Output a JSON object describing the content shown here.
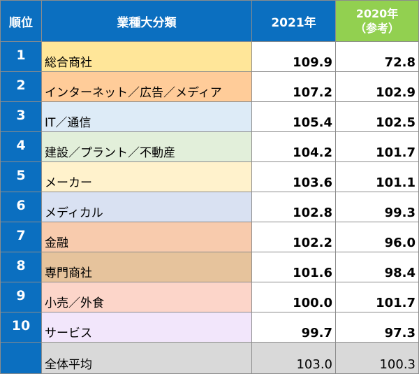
{
  "header": {
    "rank": "順位",
    "category": "業種大分類",
    "col2021": "2021年",
    "col2020_line1": "2020年",
    "col2020_line2": "（参考）"
  },
  "colors": {
    "header_blue": "#0b6fc0",
    "header_green": "#92d050",
    "total_gray": "#d9d9d9"
  },
  "rows": [
    {
      "rank": "1",
      "category": "総合商社",
      "v2021": "109.9",
      "v2020": "72.8",
      "color": "#ffe699"
    },
    {
      "rank": "2",
      "category": "インターネット／広告／メディア",
      "v2021": "107.2",
      "v2020": "102.9",
      "color": "#ffcc99"
    },
    {
      "rank": "3",
      "category": "IT／通信",
      "v2021": "105.4",
      "v2020": "102.5",
      "color": "#ddebf7"
    },
    {
      "rank": "4",
      "category": "建設／プラント／不動産",
      "v2021": "104.2",
      "v2020": "101.7",
      "color": "#e2efda"
    },
    {
      "rank": "5",
      "category": "メーカー",
      "v2021": "103.6",
      "v2020": "101.1",
      "color": "#fff2cc"
    },
    {
      "rank": "6",
      "category": "メディカル",
      "v2021": "102.8",
      "v2020": "99.3",
      "color": "#d9e1f2"
    },
    {
      "rank": "7",
      "category": "金融",
      "v2021": "102.2",
      "v2020": "96.0",
      "color": "#f8cbad"
    },
    {
      "rank": "8",
      "category": "専門商社",
      "v2021": "101.6",
      "v2020": "98.4",
      "color": "#e6c39c"
    },
    {
      "rank": "9",
      "category": "小売／外食",
      "v2021": "100.0",
      "v2020": "101.7",
      "color": "#fcd5c9"
    },
    {
      "rank": "10",
      "category": "サービス",
      "v2021": "99.7",
      "v2020": "97.3",
      "color": "#f2e6fb"
    }
  ],
  "total": {
    "category": "全体平均",
    "v2021": "103.0",
    "v2020": "100.3"
  }
}
